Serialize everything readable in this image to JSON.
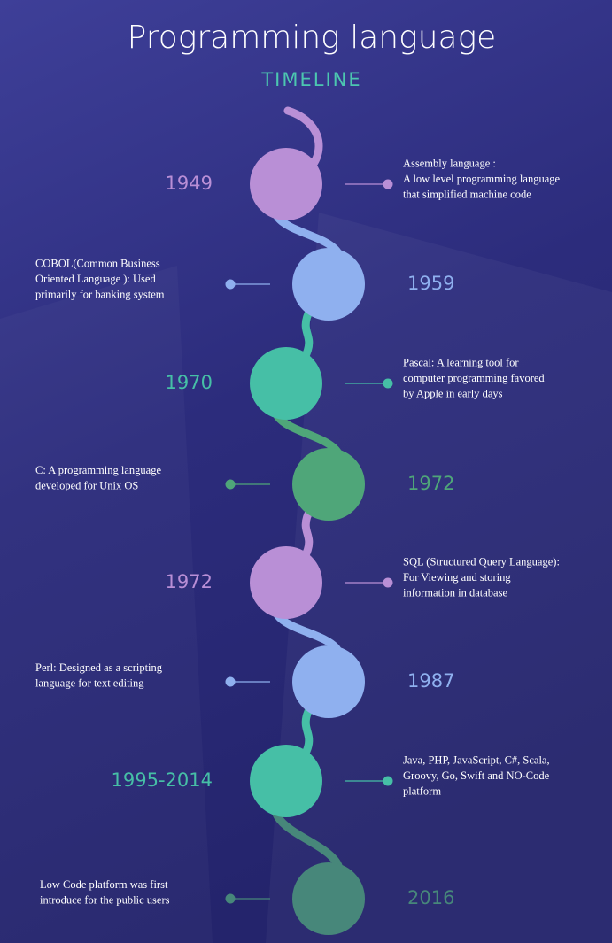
{
  "header": {
    "title": "Programming language",
    "subtitle": "TIMELINE"
  },
  "events": [
    {
      "year": "1949",
      "lines": [
        "Assembly language :",
        "A low level programming language",
        "that simplified machine code"
      ]
    },
    {
      "year": "1959",
      "lines": [
        "COBOL(Common Business",
        "Oriented Language ): Used",
        "primarily for banking system"
      ]
    },
    {
      "year": "1970",
      "lines": [
        "Pascal: A learning tool for",
        "computer programming  favored",
        "by Apple in early days"
      ]
    },
    {
      "year": "1972",
      "lines": [
        "C: A programming language",
        "developed for Unix OS"
      ]
    },
    {
      "year": "1972",
      "lines": [
        "SQL (Structured Query Language):",
        "For Viewing and storing",
        "information in database"
      ]
    },
    {
      "year": "1987",
      "lines": [
        "Perl: Designed as a scripting",
        "language for text editing"
      ]
    },
    {
      "year": "1995-2014",
      "lines": [
        "Java, PHP, JavaScript, C#, Scala,",
        "Groovy, Go, Swift and NO-Code",
        "platform"
      ]
    },
    {
      "year": "2016",
      "lines": [
        "Low Code platform was first",
        "introduce for the public users"
      ]
    }
  ]
}
